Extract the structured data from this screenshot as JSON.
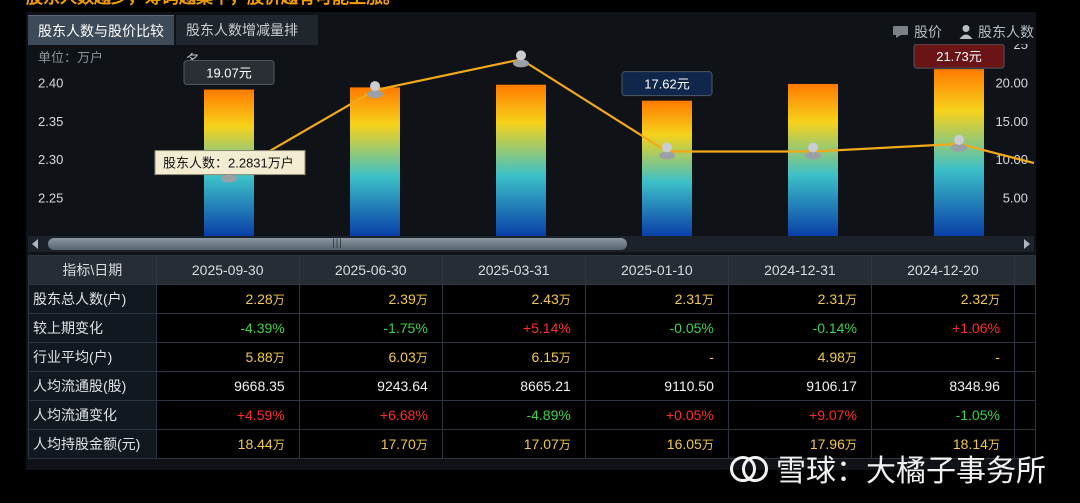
{
  "headline": "股东人数越少，筹码越集中，股价越有可能上涨。",
  "tabs": [
    "股东人数与股价比较",
    "股东人数增减量排名"
  ],
  "legend": {
    "price": "股价",
    "holders": "股东人数"
  },
  "chart_data": {
    "type": "bar",
    "x": [
      "2025-09-30",
      "2025-06-30",
      "2025-03-31",
      "2025-01-10",
      "2024-12-31",
      "2024-12-20"
    ],
    "left_axis": {
      "unit": "单位：万户",
      "ticks": [
        "2.40",
        "2.35",
        "2.30",
        "2.25"
      ],
      "tick_values": [
        2.4,
        2.35,
        2.3,
        2.25
      ],
      "ylim": [
        2.2,
        2.45
      ]
    },
    "right_axis": {
      "ticks": [
        "25",
        "20.00",
        "15.00",
        "10.00",
        "5.00"
      ],
      "tick_values": [
        25,
        20,
        15,
        10,
        5
      ],
      "ylim": [
        0,
        25
      ]
    },
    "series": [
      {
        "name": "股价",
        "kind": "bar",
        "axis": "right",
        "values": [
          19.07,
          19.35,
          19.7,
          17.62,
          19.8,
          21.73
        ]
      },
      {
        "name": "股东人数",
        "kind": "line",
        "axis": "left",
        "values": [
          2.28,
          2.39,
          2.43,
          2.31,
          2.31,
          2.32
        ],
        "continues_to": 2.295
      }
    ],
    "price_labels": [
      {
        "index": 0,
        "text": "19.07元",
        "color": "#2a2f35"
      },
      {
        "index": 3,
        "text": "17.62元",
        "color": "#10264a"
      },
      {
        "index": 5,
        "text": "21.73元",
        "color": "#6a1416"
      }
    ],
    "tooltip": {
      "index": 0,
      "text": "股东人数：2.2831万户"
    },
    "colors": {
      "bar_top": "#ff7a00",
      "bar_mid": "#f7d21a",
      "bar_low": "#3cc0c8",
      "bar_bottom": "#0a3fa8",
      "line": "#f2a91a"
    },
    "grid": false
  },
  "table": {
    "corner": "指标\\日期",
    "dates": [
      "2025-09-30",
      "2025-06-30",
      "2025-03-31",
      "2025-01-10",
      "2024-12-31",
      "2024-12-20"
    ],
    "rows": [
      {
        "label": "股东总人数(户)",
        "cells": [
          {
            "v": "2.28",
            "u": "万",
            "c": "yellow"
          },
          {
            "v": "2.39",
            "u": "万",
            "c": "yellow"
          },
          {
            "v": "2.43",
            "u": "万",
            "c": "yellow"
          },
          {
            "v": "2.31",
            "u": "万",
            "c": "yellow"
          },
          {
            "v": "2.31",
            "u": "万",
            "c": "yellow"
          },
          {
            "v": "2.32",
            "u": "万",
            "c": "yellow"
          }
        ]
      },
      {
        "label": "较上期变化",
        "cells": [
          {
            "v": "-4.39%",
            "u": "",
            "c": "green"
          },
          {
            "v": "-1.75%",
            "u": "",
            "c": "green"
          },
          {
            "v": "+5.14%",
            "u": "",
            "c": "red"
          },
          {
            "v": "-0.05%",
            "u": "",
            "c": "green"
          },
          {
            "v": "-0.14%",
            "u": "",
            "c": "green"
          },
          {
            "v": "+1.06%",
            "u": "",
            "c": "red"
          }
        ]
      },
      {
        "label": "行业平均(户)",
        "cells": [
          {
            "v": "5.88",
            "u": "万",
            "c": "yellow"
          },
          {
            "v": "6.03",
            "u": "万",
            "c": "yellow"
          },
          {
            "v": "6.15",
            "u": "万",
            "c": "yellow"
          },
          {
            "v": "-",
            "u": "",
            "c": "yellow"
          },
          {
            "v": "4.98",
            "u": "万",
            "c": "yellow"
          },
          {
            "v": "-",
            "u": "",
            "c": "yellow"
          }
        ]
      },
      {
        "label": "人均流通股(股)",
        "cells": [
          {
            "v": "9668.35",
            "u": "",
            "c": "white"
          },
          {
            "v": "9243.64",
            "u": "",
            "c": "white"
          },
          {
            "v": "8665.21",
            "u": "",
            "c": "white"
          },
          {
            "v": "9110.50",
            "u": "",
            "c": "white"
          },
          {
            "v": "9106.17",
            "u": "",
            "c": "white"
          },
          {
            "v": "8348.96",
            "u": "",
            "c": "white"
          }
        ]
      },
      {
        "label": "人均流通变化",
        "cells": [
          {
            "v": "+4.59%",
            "u": "",
            "c": "red"
          },
          {
            "v": "+6.68%",
            "u": "",
            "c": "red"
          },
          {
            "v": "-4.89%",
            "u": "",
            "c": "green"
          },
          {
            "v": "+0.05%",
            "u": "",
            "c": "red"
          },
          {
            "v": "+9.07%",
            "u": "",
            "c": "red"
          },
          {
            "v": "-1.05%",
            "u": "",
            "c": "green"
          }
        ]
      },
      {
        "label": "人均持股金额(元)",
        "cells": [
          {
            "v": "18.44",
            "u": "万",
            "c": "yellow"
          },
          {
            "v": "17.70",
            "u": "万",
            "c": "yellow"
          },
          {
            "v": "17.07",
            "u": "万",
            "c": "yellow"
          },
          {
            "v": "16.05",
            "u": "万",
            "c": "yellow"
          },
          {
            "v": "17.96",
            "u": "万",
            "c": "yellow"
          },
          {
            "v": "18.14",
            "u": "万",
            "c": "yellow"
          }
        ]
      }
    ]
  },
  "watermark": {
    "text": "雪球：大橘子事务所",
    "logo_icon": "snowball-logo-icon"
  }
}
